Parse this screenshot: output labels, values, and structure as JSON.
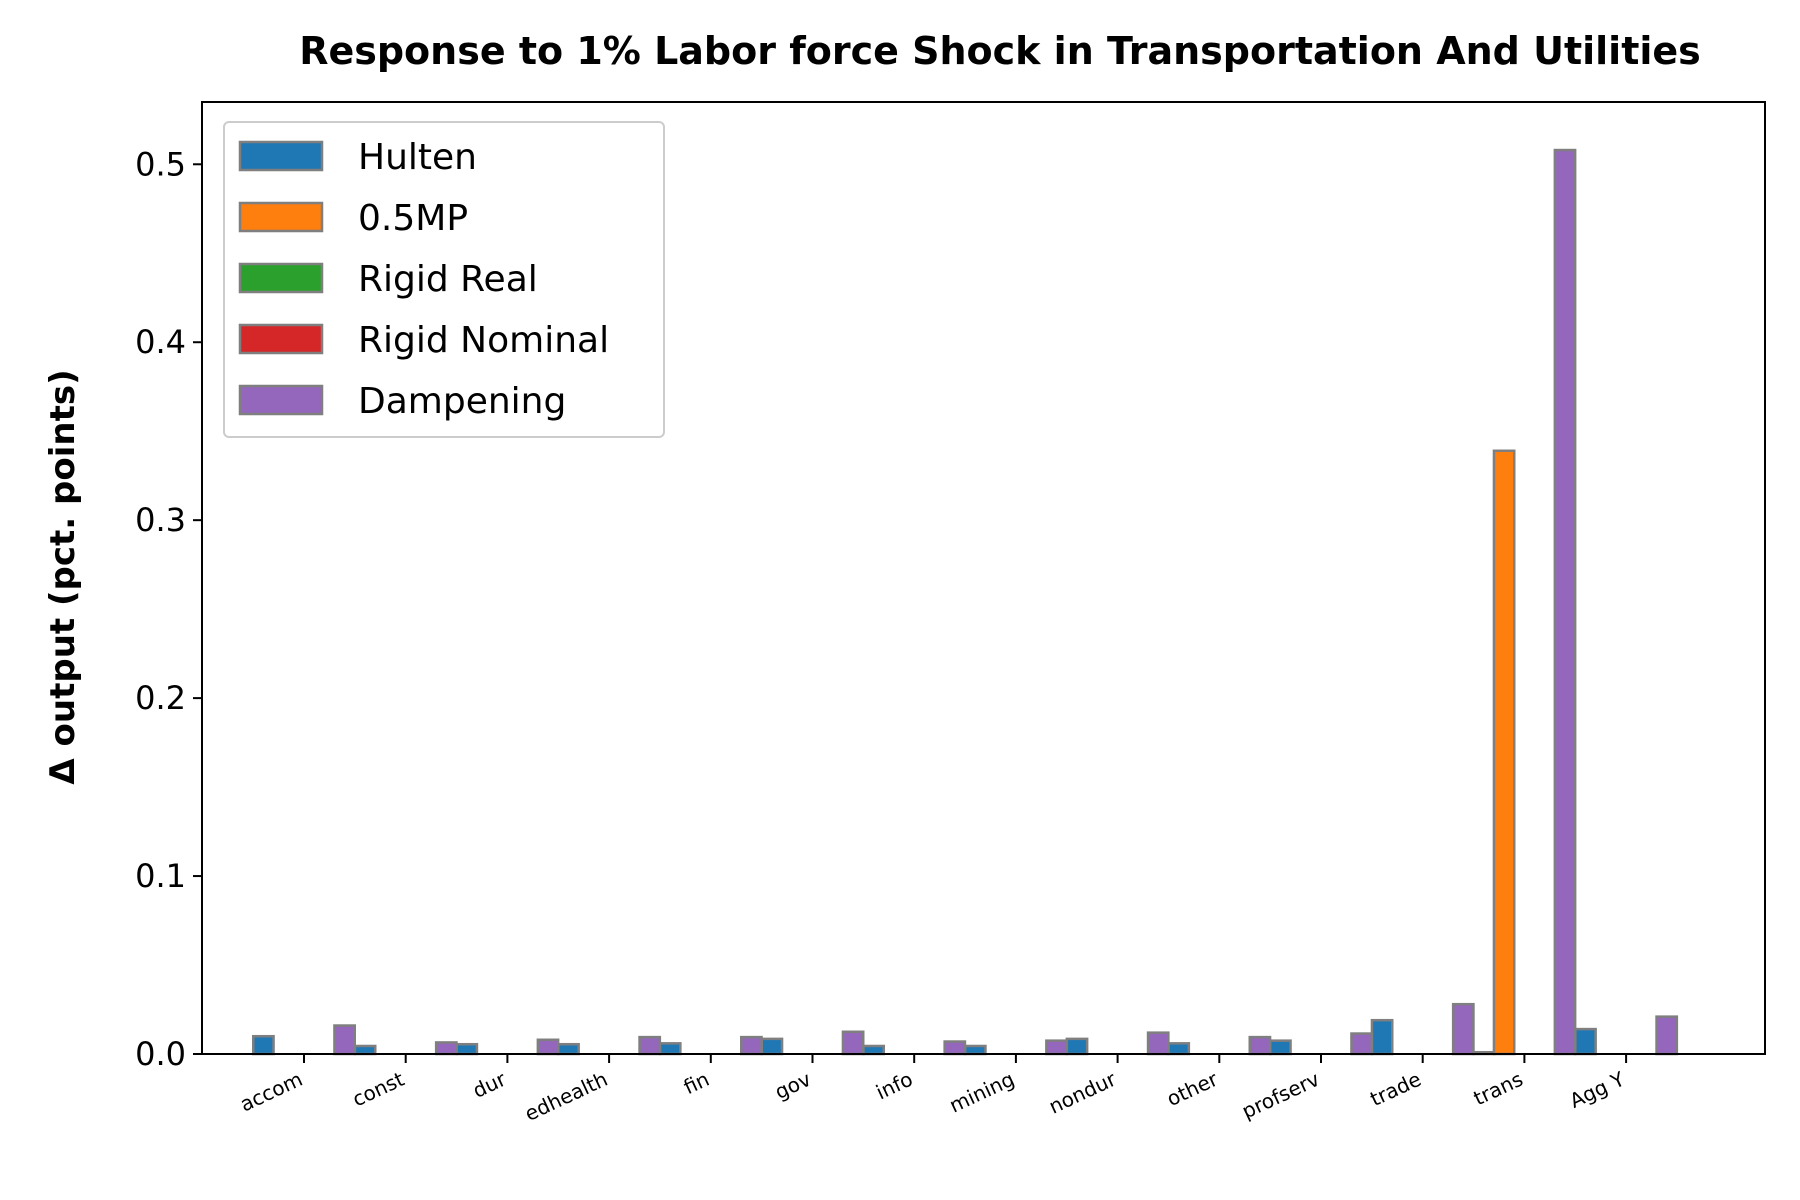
{
  "chart_data": {
    "type": "bar",
    "title": "Response to 1% Labor force Shock in Transportation And Utilities",
    "xlabel": "",
    "ylabel": "Δ output (pct. points)",
    "ylim": [
      0,
      0.535
    ],
    "yticks": [
      0.0,
      0.1,
      0.2,
      0.3,
      0.4,
      0.5
    ],
    "ytick_labels": [
      "0.0",
      "0.1",
      "0.2",
      "0.3",
      "0.4",
      "0.5"
    ],
    "categories": [
      "accom",
      "const",
      "dur",
      "edhealth",
      "fin",
      "gov",
      "info",
      "mining",
      "nondur",
      "other",
      "profserv",
      "trade",
      "trans",
      "Agg Y"
    ],
    "series": [
      {
        "name": "Hulten",
        "color": "#1f77b4",
        "values": [
          0.01,
          0.0045,
          0.0055,
          0.0055,
          0.006,
          0.0085,
          0.0045,
          0.0045,
          0.0085,
          0.006,
          0.0075,
          0.019,
          0.001,
          0.014
        ]
      },
      {
        "name": "0.5MP",
        "color": "#ff7f0e",
        "values": [
          0,
          0,
          0,
          0,
          0,
          0,
          0,
          0,
          0,
          0,
          0,
          0,
          0.339,
          0
        ]
      },
      {
        "name": "Rigid Real",
        "color": "#2ca02c",
        "values": [
          0,
          0,
          0,
          0,
          0,
          0,
          0,
          0,
          0,
          0,
          0,
          0,
          0,
          0
        ]
      },
      {
        "name": "Rigid Nominal",
        "color": "#d62728",
        "values": [
          0,
          0,
          0,
          0,
          0,
          0,
          0,
          0,
          0,
          0,
          0,
          0,
          0,
          0
        ]
      },
      {
        "name": "Dampening",
        "color": "#9467bd",
        "values": [
          0.016,
          0.0065,
          0.008,
          0.0095,
          0.0095,
          0.0125,
          0.007,
          0.0075,
          0.012,
          0.0095,
          0.0115,
          0.028,
          0.508,
          0.021
        ]
      }
    ],
    "legend_position": "top-left",
    "grid": false
  }
}
